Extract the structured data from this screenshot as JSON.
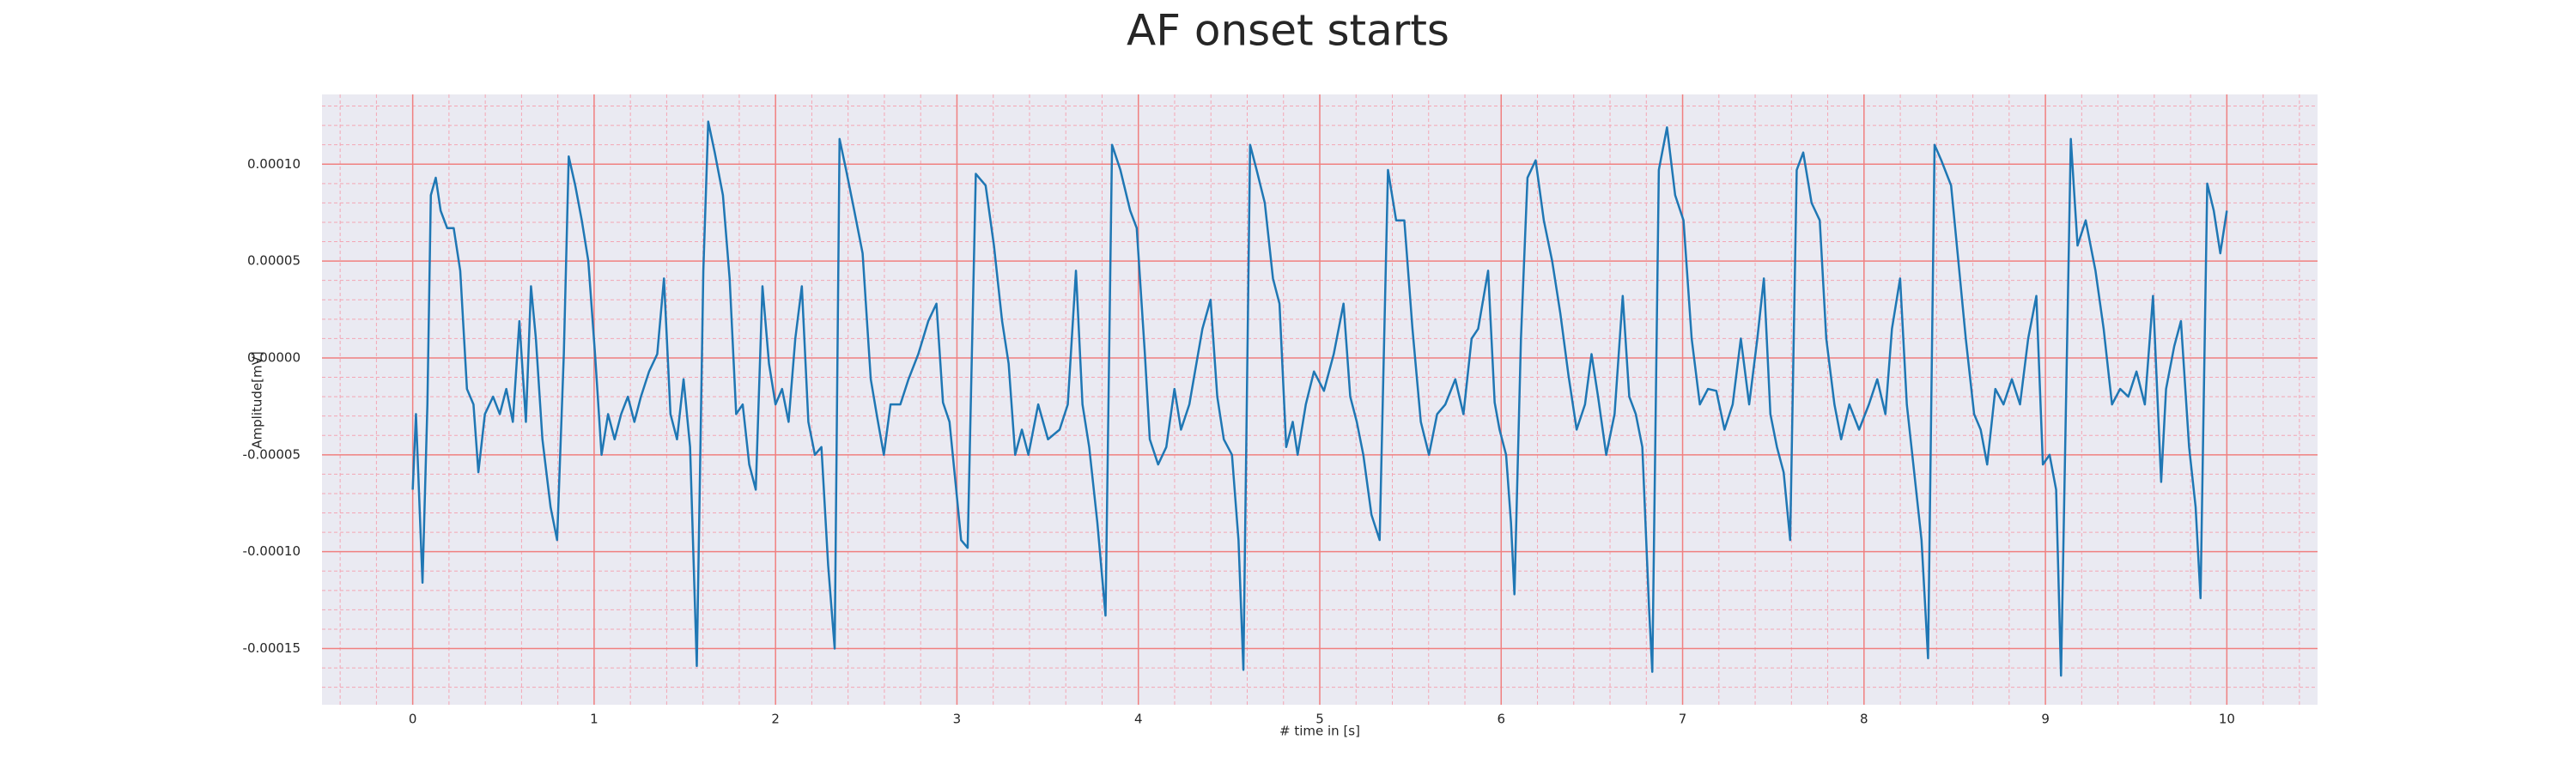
{
  "chart_data": {
    "type": "line",
    "title": "AF onset starts",
    "xlabel": "# time in [s]",
    "ylabel": "Amplitude[mV]",
    "color": "#1f77b4",
    "grid": true,
    "minor_grid": true,
    "xlim": [
      -0.5,
      10.5
    ],
    "xticks": [
      0,
      1,
      2,
      3,
      4,
      5,
      6,
      7,
      8,
      9,
      10
    ],
    "ylim": [
      -0.000179,
      0.000136
    ],
    "yticks": [
      {
        "value": -0.00015,
        "label": "-0.00015"
      },
      {
        "value": -0.0001,
        "label": "-0.00010"
      },
      {
        "value": -5e-05,
        "label": "-0.00005"
      },
      {
        "value": 0,
        "label": "0.00000"
      },
      {
        "value": 5e-05,
        "label": "0.00005"
      },
      {
        "value": 0.0001,
        "label": "0.00010"
      }
    ],
    "x": [
      0,
      0.018,
      0.054,
      0.081,
      0.1,
      0.127,
      0.154,
      0.19,
      0.226,
      0.262,
      0.299,
      0.335,
      0.362,
      0.398,
      0.443,
      0.48,
      0.516,
      0.552,
      0.588,
      0.624,
      0.652,
      0.679,
      0.715,
      0.76,
      0.796,
      0.833,
      0.86,
      0.896,
      0.932,
      0.968,
      1.005,
      1.041,
      1.077,
      1.113,
      1.149,
      1.186,
      1.222,
      1.258,
      1.303,
      1.348,
      1.385,
      1.421,
      1.457,
      1.493,
      1.529,
      1.566,
      1.602,
      1.629,
      1.665,
      1.71,
      1.747,
      1.783,
      1.819,
      1.855,
      1.891,
      1.928,
      1.964,
      2.0,
      2.036,
      2.072,
      2.109,
      2.145,
      2.181,
      2.217,
      2.253,
      2.29,
      2.326,
      2.353,
      2.389,
      2.434,
      2.48,
      2.525,
      2.561,
      2.597,
      2.634,
      2.688,
      2.733,
      2.787,
      2.842,
      2.887,
      2.923,
      2.959,
      2.996,
      3.023,
      3.059,
      3.104,
      3.158,
      3.204,
      3.249,
      3.285,
      3.321,
      3.358,
      3.394,
      3.448,
      3.502,
      3.566,
      3.611,
      3.656,
      3.692,
      3.729,
      3.774,
      3.819,
      3.855,
      3.901,
      3.955,
      3.991,
      4.036,
      4.063,
      4.109,
      4.154,
      4.199,
      4.235,
      4.281,
      4.353,
      4.398,
      4.435,
      4.471,
      4.516,
      4.552,
      4.579,
      4.616,
      4.652,
      4.697,
      4.742,
      4.778,
      4.815,
      4.851,
      4.878,
      4.923,
      4.968,
      5.023,
      5.077,
      5.131,
      5.168,
      5.204,
      5.24,
      5.285,
      5.33,
      5.376,
      5.421,
      5.466,
      5.511,
      5.557,
      5.602,
      5.647,
      5.692,
      5.747,
      5.792,
      5.837,
      5.873,
      5.928,
      5.964,
      5.991,
      6.027,
      6.054,
      6.073,
      6.109,
      6.145,
      6.19,
      6.235,
      6.281,
      6.326,
      6.371,
      6.416,
      6.462,
      6.498,
      6.534,
      6.579,
      6.625,
      6.67,
      6.706,
      6.742,
      6.778,
      6.815,
      6.833,
      6.869,
      6.914,
      6.959,
      7.005,
      7.05,
      7.095,
      7.14,
      7.186,
      7.231,
      7.276,
      7.321,
      7.367,
      7.412,
      7.448,
      7.484,
      7.52,
      7.557,
      7.593,
      7.629,
      7.665,
      7.711,
      7.756,
      7.792,
      7.837,
      7.874,
      7.919,
      7.973,
      8.027,
      8.073,
      8.118,
      8.154,
      8.199,
      8.236,
      8.272,
      8.317,
      8.353,
      8.389,
      8.426,
      8.48,
      8.516,
      8.561,
      8.607,
      8.643,
      8.679,
      8.724,
      8.769,
      8.815,
      8.86,
      8.905,
      8.95,
      8.986,
      9.023,
      9.059,
      9.086,
      9.14,
      9.177,
      9.222,
      9.276,
      9.321,
      9.367,
      9.412,
      9.457,
      9.502,
      9.548,
      9.593,
      9.638,
      9.665,
      9.71,
      9.747,
      9.792,
      9.828,
      9.855,
      9.892,
      9.928,
      9.964,
      10.0
    ],
    "values": [
      -6.8e-05,
      -2.9e-05,
      -0.000116,
      -2.4e-05,
      8.4e-05,
      9.3e-05,
      7.6e-05,
      6.7e-05,
      6.7e-05,
      4.5e-05,
      -1.6e-05,
      -2.4e-05,
      -5.9e-05,
      -2.9e-05,
      -2e-05,
      -2.9e-05,
      -1.6e-05,
      -3.3e-05,
      1.9e-05,
      -3.3e-05,
      3.7e-05,
      1e-05,
      -4.2e-05,
      -7.7e-05,
      -9.4e-05,
      2e-06,
      0.000104,
      8.9e-05,
      7.1e-05,
      5e-05,
      2e-06,
      -5e-05,
      -2.9e-05,
      -4.2e-05,
      -2.9e-05,
      -2e-05,
      -3.3e-05,
      -2e-05,
      -7e-06,
      2e-06,
      4.1e-05,
      -2.9e-05,
      -4.2e-05,
      -1.1e-05,
      -4.6e-05,
      -0.000159,
      4.5e-05,
      0.000122,
      0.000106,
      8.4e-05,
      4.1e-05,
      -2.9e-05,
      -2.4e-05,
      -5.5e-05,
      -6.8e-05,
      3.7e-05,
      -3e-06,
      -2.4e-05,
      -1.6e-05,
      -3.3e-05,
      1e-05,
      3.7e-05,
      -3.3e-05,
      -5e-05,
      -4.6e-05,
      -0.000107,
      -0.00015,
      0.000113,
      9.7e-05,
      7.6e-05,
      5.4e-05,
      -1.1e-05,
      -3.1e-05,
      -5e-05,
      -2.4e-05,
      -2.4e-05,
      -1.1e-05,
      2e-06,
      1.9e-05,
      2.8e-05,
      -2.3e-05,
      -3.3e-05,
      -6.8e-05,
      -9.4e-05,
      -9.8e-05,
      9.5e-05,
      8.9e-05,
      5.8e-05,
      1.9e-05,
      -3e-06,
      -5e-05,
      -3.7e-05,
      -5e-05,
      -2.4e-05,
      -4.2e-05,
      -3.7e-05,
      -2.4e-05,
      4.5e-05,
      -2.4e-05,
      -4.6e-05,
      -8.5e-05,
      -0.000133,
      0.00011,
      9.7e-05,
      7.6e-05,
      6.7e-05,
      2e-06,
      -4.2e-05,
      -5.5e-05,
      -4.6e-05,
      -1.6e-05,
      -3.7e-05,
      -2.4e-05,
      1.5e-05,
      3e-05,
      -2e-05,
      -4.2e-05,
      -5e-05,
      -9.4e-05,
      -0.000161,
      0.00011,
      9.7e-05,
      8e-05,
      4.1e-05,
      2.8e-05,
      -4.6e-05,
      -3.3e-05,
      -5e-05,
      -2.4e-05,
      -7e-06,
      -1.7e-05,
      2e-06,
      2.8e-05,
      -2e-05,
      -3.3e-05,
      -5e-05,
      -8.1e-05,
      -9.4e-05,
      9.7e-05,
      7.1e-05,
      7.1e-05,
      1.5e-05,
      -3.3e-05,
      -5e-05,
      -2.9e-05,
      -2.4e-05,
      -1.1e-05,
      -2.9e-05,
      1e-05,
      1.5e-05,
      4.5e-05,
      -2.3e-05,
      -3.7e-05,
      -5e-05,
      -8.5e-05,
      -0.000122,
      1e-05,
      9.3e-05,
      0.000102,
      7.1e-05,
      5e-05,
      2.3e-05,
      -9e-06,
      -3.7e-05,
      -2.4e-05,
      2e-06,
      -2e-05,
      -5e-05,
      -2.9e-05,
      3.2e-05,
      -2e-05,
      -2.9e-05,
      -4.6e-05,
      -0.000129,
      -0.000162,
      9.7e-05,
      0.000119,
      8.4e-05,
      7.1e-05,
      1e-05,
      -2.4e-05,
      -1.6e-05,
      -1.7e-05,
      -3.7e-05,
      -2.4e-05,
      1e-05,
      -2.4e-05,
      1e-05,
      4.1e-05,
      -2.9e-05,
      -4.6e-05,
      -5.9e-05,
      -9.4e-05,
      9.7e-05,
      0.000106,
      8e-05,
      7.1e-05,
      1e-05,
      -2.4e-05,
      -4.2e-05,
      -2.4e-05,
      -3.7e-05,
      -2.4e-05,
      -1.1e-05,
      -2.9e-05,
      1.5e-05,
      4.1e-05,
      -2.4e-05,
      -5.5e-05,
      -9.4e-05,
      -0.000155,
      0.00011,
      0.000102,
      8.9e-05,
      5.4e-05,
      1e-05,
      -2.9e-05,
      -3.7e-05,
      -5.5e-05,
      -1.6e-05,
      -2.4e-05,
      -1.1e-05,
      -2.4e-05,
      1e-05,
      3.2e-05,
      -5.5e-05,
      -5e-05,
      -6.8e-05,
      -0.000164,
      0.000113,
      5.8e-05,
      7.1e-05,
      4.5e-05,
      1.5e-05,
      -2.4e-05,
      -1.6e-05,
      -2e-05,
      -7e-06,
      -2.4e-05,
      3.2e-05,
      -6.4e-05,
      -1.6e-05,
      6e-06,
      1.9e-05,
      -4.6e-05,
      -7.7e-05,
      -0.000124,
      9e-05,
      7.6e-05,
      5.4e-05,
      7.6e-05
    ]
  }
}
